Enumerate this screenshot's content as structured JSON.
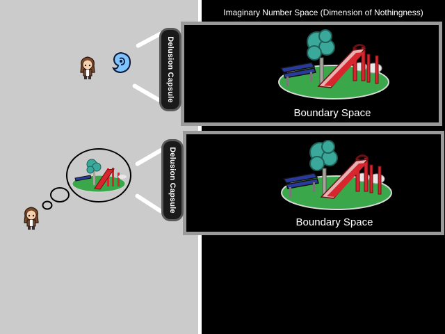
{
  "header": {
    "title": "Imaginary Number Space (Dimension of Nothingness)"
  },
  "panels": [
    {
      "caption": "Boundary Space"
    },
    {
      "caption": "Boundary Space"
    }
  ],
  "capsules": [
    {
      "label": "Delusion Capsule"
    },
    {
      "label": "Delusion Capsule"
    }
  ],
  "colors": {
    "left_background": "#cbcbcb",
    "right_background": "#000000",
    "panel_border": "#9a9a9a",
    "grass": "#3aa84a",
    "slide": "#d8262e",
    "bench": "#2a3a9a",
    "tree": "#3aa89a"
  },
  "icons": [
    "girl-character-icon",
    "blue-spirit-icon",
    "thought-bubble-icon",
    "park-illustration-icon"
  ]
}
